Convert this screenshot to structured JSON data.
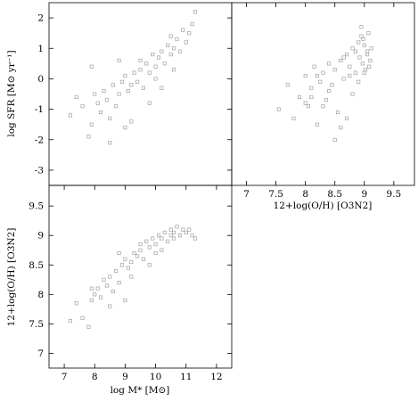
{
  "chart_data": [
    {
      "type": "scatter",
      "panel": "top-left",
      "xlabel": "",
      "ylabel": "log SFR [M⊙ yr⁻¹]",
      "xlim": [
        6.5,
        12.5
      ],
      "ylim": [
        -3.5,
        2.5
      ],
      "xticks": [],
      "yticks": [
        -3,
        -2,
        -1,
        0,
        1,
        2
      ],
      "marker": "open-square",
      "color": "#a0a0a0",
      "x_column": "log M*",
      "series": [
        {
          "x": [
            7.2,
            7.4,
            7.6,
            7.8,
            7.9,
            8.0,
            8.1,
            8.2,
            8.3,
            8.4,
            8.5,
            8.6,
            8.7,
            8.8,
            8.9,
            9.0,
            9.0,
            9.1,
            9.2,
            9.3,
            9.4,
            9.5,
            9.5,
            9.6,
            9.7,
            9.8,
            9.9,
            10.0,
            10.0,
            10.1,
            10.2,
            10.3,
            10.4,
            10.5,
            10.5,
            10.6,
            10.7,
            10.8,
            10.9,
            11.0,
            11.1,
            11.2,
            8.5,
            9.2,
            9.8,
            10.2,
            10.6,
            7.9,
            8.8,
            11.3
          ],
          "y": [
            -1.2,
            -0.6,
            -0.9,
            -1.9,
            -1.5,
            -0.5,
            -0.8,
            -1.1,
            -0.4,
            -0.7,
            -1.3,
            -0.2,
            -0.9,
            -0.5,
            -0.1,
            -1.6,
            0.1,
            -0.4,
            -0.2,
            0.2,
            -0.1,
            0.3,
            0.6,
            -0.3,
            0.5,
            0.2,
            0.8,
            0.0,
            0.4,
            0.7,
            0.9,
            0.5,
            1.1,
            0.8,
            1.4,
            1.0,
            1.3,
            0.9,
            1.6,
            1.2,
            1.5,
            1.8,
            -2.1,
            -1.4,
            -0.8,
            -0.3,
            0.3,
            0.4,
            0.6,
            2.2
          ]
        }
      ]
    },
    {
      "type": "scatter",
      "panel": "top-right",
      "xlabel": "12+log(O/H) [O3N2]",
      "ylabel": "",
      "xlim": [
        6.75,
        9.85
      ],
      "ylim": [
        -3.5,
        2.5
      ],
      "xticks": [
        7,
        7.5,
        8,
        8.5,
        9,
        9.5
      ],
      "yticks": [],
      "marker": "open-square",
      "color": "#a0a0a0",
      "x_column": "12+log(O/H) [O3N2]",
      "series": [
        {
          "x": [
            7.55,
            7.7,
            7.8,
            7.9,
            8.0,
            8.05,
            8.1,
            8.15,
            8.2,
            8.25,
            8.3,
            8.35,
            8.4,
            8.45,
            8.5,
            8.55,
            8.6,
            8.65,
            8.7,
            8.75,
            8.8,
            8.85,
            8.9,
            8.92,
            8.95,
            8.97,
            9.0,
            9.02,
            9.05,
            9.07,
            9.1,
            8.6,
            8.8,
            8.9,
            9.0,
            8.2,
            8.4,
            8.7,
            8.95,
            9.05,
            8.5,
            8.3,
            8.1,
            8.85,
            8.98,
            9.08,
            8.0,
            8.75,
            8.65,
            9.12
          ],
          "y": [
            -1.0,
            -0.2,
            -1.3,
            -0.6,
            0.1,
            -0.9,
            -0.3,
            0.4,
            -1.5,
            -0.1,
            0.2,
            -0.7,
            0.5,
            -0.2,
            0.3,
            -1.1,
            0.6,
            0.0,
            0.8,
            0.4,
            1.0,
            0.2,
            1.2,
            0.7,
            1.4,
            0.5,
            1.1,
            0.3,
            0.9,
            1.5,
            0.6,
            -1.6,
            -0.5,
            -0.1,
            0.2,
            0.1,
            -0.4,
            -1.3,
            1.7,
            0.8,
            -2.0,
            -0.9,
            -0.6,
            0.9,
            1.3,
            0.4,
            -0.8,
            0.1,
            0.7,
            1.0
          ]
        }
      ]
    },
    {
      "type": "scatter",
      "panel": "bottom-left",
      "xlabel": "log M* [M⊙]",
      "ylabel": "12+log(O/H) [O3N2]",
      "xlim": [
        6.5,
        12.5
      ],
      "ylim": [
        6.75,
        9.85
      ],
      "xticks": [
        7,
        8,
        9,
        10,
        11,
        12
      ],
      "yticks": [
        7,
        7.5,
        8,
        8.5,
        9,
        9.5
      ],
      "marker": "open-square",
      "color": "#a0a0a0",
      "x_column": "log M*",
      "series": [
        {
          "x": [
            7.2,
            7.4,
            7.6,
            7.8,
            7.9,
            8.0,
            8.1,
            8.2,
            8.3,
            8.4,
            8.5,
            8.6,
            8.7,
            8.8,
            8.9,
            9.0,
            9.0,
            9.1,
            9.2,
            9.3,
            9.4,
            9.5,
            9.5,
            9.6,
            9.7,
            9.8,
            9.9,
            10.0,
            10.0,
            10.1,
            10.2,
            10.3,
            10.4,
            10.5,
            10.5,
            10.6,
            10.7,
            10.8,
            10.9,
            11.0,
            11.1,
            11.2,
            8.5,
            9.2,
            9.8,
            10.2,
            10.6,
            7.9,
            8.8,
            11.3
          ],
          "y": [
            7.55,
            7.85,
            7.6,
            7.45,
            7.9,
            8.0,
            8.1,
            7.95,
            8.25,
            8.15,
            8.3,
            8.05,
            8.4,
            8.2,
            8.5,
            7.9,
            8.6,
            8.45,
            8.55,
            8.7,
            8.65,
            8.75,
            8.85,
            8.6,
            8.9,
            8.8,
            8.95,
            8.7,
            8.85,
            9.0,
            8.95,
            9.05,
            8.9,
            9.1,
            9.0,
            9.05,
            9.15,
            9.0,
            9.1,
            9.05,
            9.1,
            9.0,
            7.8,
            8.3,
            8.5,
            8.75,
            8.95,
            8.1,
            8.7,
            8.95
          ]
        }
      ]
    }
  ]
}
